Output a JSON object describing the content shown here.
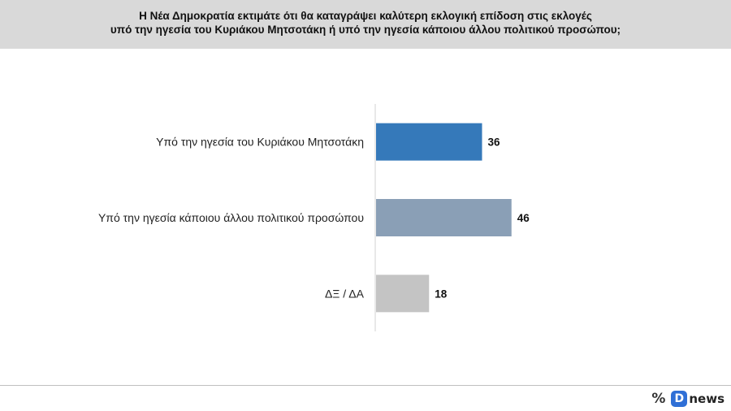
{
  "header": {
    "title_line1": "Η Νέα Δημοκρατία εκτιμάτε ότι θα καταγράψει καλύτερη εκλογική επίδοση στις εκλογές",
    "title_line2": "υπό την ηγεσία του Κυριάκου Μητσοτάκη ή υπό την ηγεσία κάποιου άλλου πολιτικού προσώπου;"
  },
  "chart_data": {
    "type": "bar",
    "orientation": "horizontal",
    "title": "Η Νέα Δημοκρατία εκτιμάτε ότι θα καταγράψει καλύτερη εκλογική επίδοση στις εκλογές υπό την ηγεσία του Κυριάκου Μητσοτάκη ή υπό την ηγεσία κάποιου άλλου πολιτικού προσώπου;",
    "categories": [
      "Υπό την ηγεσία του Κυριάκου Μητσοτάκη",
      "Υπό την ηγεσία κάποιου άλλου πολιτικού προσώπου",
      "ΔΞ / ΔΑ"
    ],
    "values": [
      36,
      46,
      18
    ],
    "colors": [
      "#3579ba",
      "#8a9fb6",
      "#c4c4c4"
    ],
    "xlim": [
      0,
      100
    ],
    "grid": false,
    "legend": "none",
    "data_labels": true
  },
  "footer": {
    "logo_icon": "percent-icon",
    "logo_badge": "D",
    "logo_text": "news"
  }
}
